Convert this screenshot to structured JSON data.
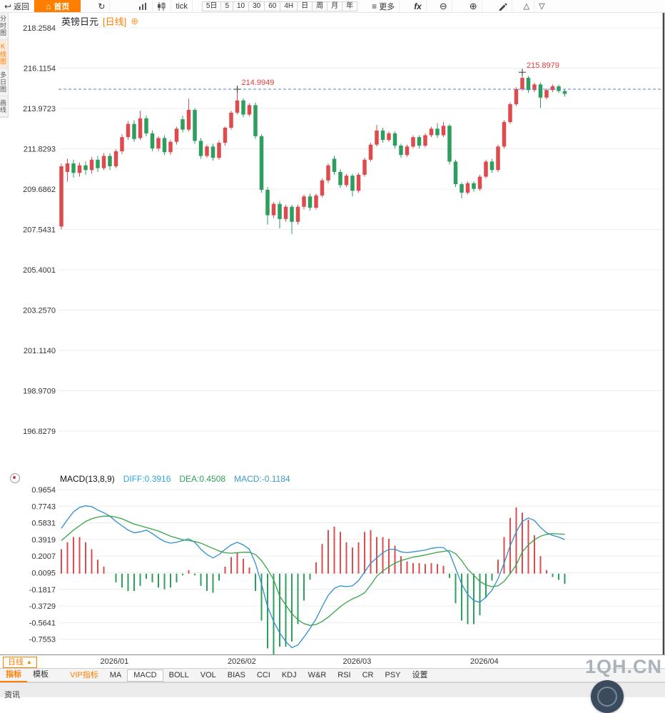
{
  "toolbar": {
    "back_label": "返回",
    "home_label": "首页",
    "tick_label": "tick",
    "periods": [
      "5日",
      "5",
      "10",
      "30",
      "60",
      "4H",
      "日",
      "周",
      "月",
      "年"
    ],
    "more_label": "更多",
    "fx_label": "fx"
  },
  "left_tabs": {
    "items": [
      "分时图",
      "K线图",
      "多日图",
      "画线"
    ],
    "active_index": 1
  },
  "chart_header": {
    "symbol": "英镑日元",
    "period_tag": "[日线]",
    "add_icon": "⊕"
  },
  "indicator_header": {
    "name": "MACD(13,8,9)",
    "diff": "DIFF:0.3916",
    "dea": "DEA:0.4508",
    "macd": "MACD:-0.1184"
  },
  "bottom": {
    "period_box": "日线",
    "period_box_arrow": "▲",
    "tabs_left": [
      "指标",
      "模板"
    ],
    "active_left": "指标",
    "indicator_tabs": [
      "VIP指标",
      "MA",
      "MACD",
      "BOLL",
      "VOL",
      "BIAS",
      "CCI",
      "KDJ",
      "W&R",
      "RSI",
      "CR",
      "PSY",
      "设置"
    ],
    "active_indicator": "MACD",
    "highlight_tabs": [
      "VIP指标"
    ],
    "watermark": "1QH.CN",
    "status_left": "资讯"
  },
  "chart_data": {
    "type": "candlestick",
    "title": "英镑日元 [日线]",
    "symbol": "英镑日元",
    "period": "日线",
    "legend_position": "top-left",
    "grid": true,
    "y_ticks": [
      218.2584,
      216.1154,
      213.9723,
      211.8293,
      209.6862,
      207.5431,
      205.4001,
      203.257,
      201.114,
      198.9709,
      196.8279
    ],
    "x_labels": [
      {
        "label": "2026/01",
        "index": 9
      },
      {
        "label": "2026/02",
        "index": 30
      },
      {
        "label": "2026/03",
        "index": 49
      },
      {
        "label": "2026/04",
        "index": 70
      }
    ],
    "ref_line_price": 214.9949,
    "annotations": [
      {
        "text": "214.9949",
        "index": 29,
        "price": 214.9949
      },
      {
        "text": "215.8979",
        "index": 76,
        "price": 215.8979
      }
    ],
    "candles": [
      [
        207.7,
        211.05,
        207.55,
        210.9
      ],
      [
        210.6,
        211.3,
        210.1,
        211.05
      ],
      [
        211.05,
        211.25,
        210.3,
        210.55
      ],
      [
        210.55,
        211.1,
        210.35,
        210.95
      ],
      [
        210.95,
        211.15,
        210.45,
        210.7
      ],
      [
        210.7,
        211.4,
        210.5,
        211.25
      ],
      [
        211.25,
        211.45,
        210.6,
        210.8
      ],
      [
        210.8,
        211.6,
        210.7,
        211.45
      ],
      [
        211.45,
        211.6,
        210.7,
        210.9
      ],
      [
        210.9,
        211.8,
        210.8,
        211.7
      ],
      [
        211.7,
        212.6,
        211.55,
        212.45
      ],
      [
        212.45,
        213.3,
        212.3,
        213.15
      ],
      [
        213.15,
        213.35,
        212.2,
        212.35
      ],
      [
        212.4,
        213.85,
        212.3,
        213.45
      ],
      [
        213.45,
        213.6,
        212.5,
        212.65
      ],
      [
        212.65,
        212.8,
        211.7,
        211.85
      ],
      [
        211.85,
        212.5,
        211.7,
        212.4
      ],
      [
        212.4,
        212.55,
        211.5,
        211.65
      ],
      [
        211.65,
        212.3,
        211.5,
        212.2
      ],
      [
        212.2,
        213.0,
        212.05,
        212.9
      ],
      [
        213.4,
        213.6,
        212.7,
        212.85
      ],
      [
        212.85,
        214.5,
        212.75,
        213.9
      ],
      [
        213.9,
        214.0,
        212.1,
        212.25
      ],
      [
        212.25,
        212.4,
        211.3,
        211.45
      ],
      [
        211.45,
        212.05,
        211.35,
        211.95
      ],
      [
        211.95,
        212.1,
        211.2,
        211.35
      ],
      [
        211.35,
        212.25,
        211.25,
        212.15
      ],
      [
        212.15,
        213.0,
        212.0,
        212.95
      ],
      [
        212.95,
        213.85,
        212.85,
        213.75
      ],
      [
        213.75,
        214.95,
        213.65,
        214.4
      ],
      [
        214.4,
        214.5,
        213.5,
        213.65
      ],
      [
        213.65,
        214.25,
        213.55,
        214.15
      ],
      [
        214.15,
        214.3,
        212.35,
        212.5
      ],
      [
        212.5,
        212.6,
        209.5,
        209.65
      ],
      [
        209.65,
        209.8,
        207.8,
        208.3
      ],
      [
        208.3,
        209.0,
        208.15,
        208.9
      ],
      [
        208.9,
        209.05,
        207.6,
        208.1
      ],
      [
        208.1,
        208.85,
        207.95,
        208.75
      ],
      [
        208.75,
        208.85,
        207.3,
        207.95
      ],
      [
        207.95,
        208.85,
        207.8,
        208.75
      ],
      [
        208.75,
        209.4,
        208.6,
        209.3
      ],
      [
        209.3,
        209.45,
        208.55,
        208.7
      ],
      [
        208.7,
        209.45,
        208.6,
        209.35
      ],
      [
        209.35,
        210.25,
        209.25,
        210.15
      ],
      [
        210.15,
        211.05,
        210.0,
        210.95
      ],
      [
        211.3,
        211.45,
        210.45,
        210.6
      ],
      [
        210.6,
        210.75,
        209.75,
        209.9
      ],
      [
        209.9,
        210.5,
        209.8,
        210.4
      ],
      [
        210.4,
        210.5,
        209.3,
        209.6
      ],
      [
        209.6,
        210.55,
        209.5,
        210.45
      ],
      [
        210.45,
        211.35,
        210.35,
        211.25
      ],
      [
        211.25,
        212.15,
        211.15,
        212.05
      ],
      [
        212.05,
        213.1,
        211.95,
        212.8
      ],
      [
        212.8,
        212.95,
        212.15,
        212.3
      ],
      [
        212.3,
        212.75,
        212.2,
        212.65
      ],
      [
        212.65,
        212.75,
        211.85,
        212.0
      ],
      [
        212.0,
        212.1,
        211.35,
        211.5
      ],
      [
        211.5,
        212.05,
        211.4,
        211.95
      ],
      [
        211.95,
        212.55,
        211.85,
        212.45
      ],
      [
        212.45,
        212.55,
        211.85,
        212.0
      ],
      [
        212.0,
        212.65,
        211.9,
        212.55
      ],
      [
        212.55,
        213.0,
        212.45,
        212.9
      ],
      [
        212.9,
        213.2,
        212.4,
        212.55
      ],
      [
        212.55,
        213.25,
        212.45,
        213.05
      ],
      [
        213.05,
        213.15,
        211.0,
        211.15
      ],
      [
        211.15,
        211.25,
        209.8,
        209.95
      ],
      [
        209.95,
        210.05,
        209.2,
        209.5
      ],
      [
        209.5,
        210.1,
        209.4,
        210.0
      ],
      [
        210.0,
        210.1,
        209.55,
        209.7
      ],
      [
        209.7,
        210.45,
        209.6,
        210.35
      ],
      [
        210.35,
        211.25,
        210.25,
        211.15
      ],
      [
        211.15,
        211.3,
        210.55,
        210.7
      ],
      [
        210.7,
        212.05,
        210.6,
        211.95
      ],
      [
        211.95,
        213.35,
        211.85,
        213.25
      ],
      [
        213.25,
        214.3,
        213.15,
        214.2
      ],
      [
        214.2,
        215.1,
        214.1,
        215.0
      ],
      [
        215.0,
        215.9,
        214.9,
        215.6
      ],
      [
        215.6,
        215.7,
        214.8,
        214.95
      ],
      [
        214.95,
        215.35,
        214.85,
        215.25
      ],
      [
        215.25,
        215.35,
        214.0,
        214.55
      ],
      [
        214.55,
        215.05,
        214.45,
        214.95
      ],
      [
        214.95,
        215.25,
        214.85,
        215.15
      ],
      [
        215.15,
        215.25,
        214.8,
        214.9
      ],
      [
        214.9,
        215.0,
        214.6,
        214.75
      ]
    ],
    "macd": {
      "label": "MACD(13,8,9)",
      "diff_last": 0.3916,
      "dea_last": 0.4508,
      "macd_last": -0.1184,
      "y_ticks": [
        0.9654,
        0.7743,
        0.5831,
        0.3919,
        0.2007,
        0.0095,
        -0.1817,
        -0.3729,
        -0.5641,
        -0.7553
      ],
      "diff": [
        0.52,
        0.62,
        0.71,
        0.76,
        0.78,
        0.77,
        0.73,
        0.7,
        0.66,
        0.6,
        0.55,
        0.5,
        0.47,
        0.48,
        0.5,
        0.46,
        0.41,
        0.37,
        0.35,
        0.36,
        0.38,
        0.4,
        0.36,
        0.28,
        0.22,
        0.18,
        0.22,
        0.28,
        0.33,
        0.36,
        0.33,
        0.28,
        0.12,
        -0.12,
        -0.38,
        -0.55,
        -0.68,
        -0.78,
        -0.85,
        -0.82,
        -0.73,
        -0.63,
        -0.52,
        -0.38,
        -0.25,
        -0.17,
        -0.14,
        -0.15,
        -0.14,
        -0.08,
        0.02,
        0.12,
        0.18,
        0.24,
        0.28,
        0.28,
        0.25,
        0.24,
        0.25,
        0.26,
        0.27,
        0.29,
        0.3,
        0.3,
        0.24,
        0.06,
        -0.12,
        -0.24,
        -0.31,
        -0.33,
        -0.27,
        -0.19,
        -0.06,
        0.12,
        0.32,
        0.48,
        0.6,
        0.64,
        0.61,
        0.53,
        0.47,
        0.44,
        0.42,
        0.3916
      ],
      "dea": [
        0.38,
        0.44,
        0.5,
        0.55,
        0.6,
        0.63,
        0.65,
        0.66,
        0.66,
        0.65,
        0.63,
        0.6,
        0.57,
        0.55,
        0.53,
        0.51,
        0.49,
        0.46,
        0.43,
        0.41,
        0.39,
        0.38,
        0.37,
        0.35,
        0.32,
        0.29,
        0.26,
        0.24,
        0.235,
        0.24,
        0.245,
        0.245,
        0.22,
        0.15,
        0.05,
        -0.07,
        -0.26,
        -0.36,
        -0.46,
        -0.53,
        -0.575,
        -0.595,
        -0.585,
        -0.55,
        -0.5,
        -0.44,
        -0.38,
        -0.33,
        -0.29,
        -0.26,
        -0.22,
        -0.13,
        -0.03,
        0.03,
        0.08,
        0.12,
        0.15,
        0.17,
        0.19,
        0.2,
        0.215,
        0.23,
        0.245,
        0.255,
        0.265,
        0.23,
        0.15,
        0.05,
        -0.02,
        -0.09,
        -0.13,
        -0.15,
        -0.14,
        -0.09,
        0.0,
        0.1,
        0.25,
        0.33,
        0.39,
        0.43,
        0.45,
        0.46,
        0.456,
        0.4508
      ]
    },
    "colors": {
      "up": "#dd4b4e",
      "down": "#2e9e5e",
      "diff_line": "#2e8fce",
      "dea_line": "#36a548",
      "ref_line": "#4a82d9",
      "annotation": "#e23b3b",
      "grid": "#ececec",
      "axis_text": "#333333",
      "right_border": "#444444"
    }
  }
}
